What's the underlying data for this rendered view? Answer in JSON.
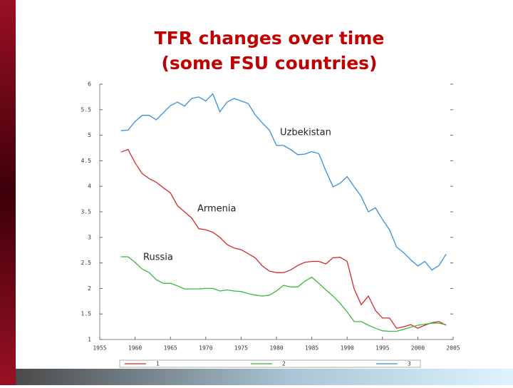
{
  "chart_data": {
    "type": "line",
    "title": [
      "TFR changes over time",
      "(some FSU countries)"
    ],
    "x": [
      1958,
      1959,
      1960,
      1961,
      1962,
      1963,
      1964,
      1965,
      1966,
      1967,
      1968,
      1969,
      1970,
      1971,
      1972,
      1973,
      1974,
      1975,
      1976,
      1977,
      1978,
      1979,
      1980,
      1981,
      1982,
      1983,
      1984,
      1985,
      1986,
      1987,
      1988,
      1989,
      1990,
      1991,
      1992,
      1993,
      1994,
      1995,
      1996,
      1997,
      1998,
      1999,
      2000,
      2001,
      2002,
      2003,
      2004
    ],
    "series": [
      {
        "name": "1",
        "color": "#d42a2a",
        "values": [
          4.67,
          4.72,
          4.46,
          4.25,
          4.15,
          4.08,
          3.97,
          3.87,
          3.62,
          3.5,
          3.38,
          3.17,
          3.15,
          3.1,
          3.0,
          2.86,
          2.79,
          2.76,
          2.68,
          2.6,
          2.44,
          2.34,
          2.31,
          2.31,
          2.36,
          2.45,
          2.51,
          2.53,
          2.53,
          2.48,
          2.6,
          2.61,
          2.53,
          1.99,
          1.68,
          1.85,
          1.57,
          1.42,
          1.42,
          1.22,
          1.25,
          1.29,
          1.22,
          1.28,
          1.33,
          1.35,
          1.28
        ]
      },
      {
        "name": "2",
        "color": "#3cb83c",
        "values": [
          2.62,
          2.62,
          2.51,
          2.38,
          2.31,
          2.17,
          2.1,
          2.1,
          2.05,
          1.99,
          1.99,
          1.99,
          2.0,
          2.0,
          1.95,
          1.97,
          1.95,
          1.94,
          1.9,
          1.87,
          1.85,
          1.87,
          1.95,
          2.06,
          2.03,
          2.03,
          2.14,
          2.22,
          2.1,
          1.97,
          1.85,
          1.71,
          1.54,
          1.35,
          1.35,
          1.28,
          1.22,
          1.17,
          1.16,
          1.16,
          1.2,
          1.24,
          1.28,
          1.3,
          1.32,
          1.32,
          1.29
        ]
      },
      {
        "name": "3",
        "color": "#3a8fd6",
        "values": [
          5.09,
          5.1,
          5.27,
          5.39,
          5.39,
          5.3,
          5.44,
          5.58,
          5.65,
          5.57,
          5.72,
          5.75,
          5.67,
          5.81,
          5.46,
          5.65,
          5.72,
          5.67,
          5.62,
          5.4,
          5.24,
          5.1,
          4.8,
          4.8,
          4.72,
          4.62,
          4.63,
          4.68,
          4.64,
          4.3,
          3.99,
          4.06,
          4.19,
          3.99,
          3.8,
          3.5,
          3.58,
          3.35,
          3.15,
          2.81,
          2.7,
          2.56,
          2.44,
          2.53,
          2.36,
          2.45,
          2.67
        ]
      }
    ],
    "annotations": [
      "Uzbekistan",
      "Armenia",
      "Russia"
    ],
    "xlim": [
      1955,
      2005
    ],
    "xticks": [
      1955,
      1960,
      1965,
      1970,
      1975,
      1980,
      1985,
      1990,
      1995,
      2000,
      2005
    ],
    "ylim": [
      1,
      6
    ],
    "yticks": [
      1,
      1.5,
      2,
      2.5,
      3,
      3.5,
      4,
      4.5,
      5,
      5.5,
      6
    ]
  }
}
